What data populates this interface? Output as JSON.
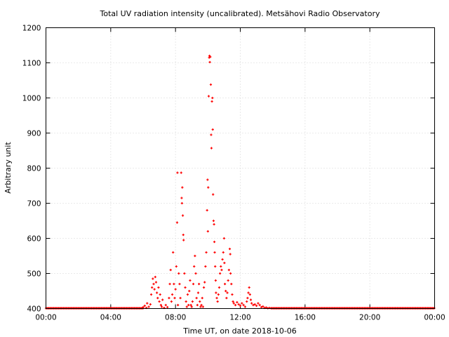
{
  "chart_data": {
    "type": "scatter",
    "title": "Total UV radiation intensity (uncalibrated). Metsähovi Radio Observatory",
    "xlabel": "Time UT, on date 2018-10-06",
    "ylabel": "Arbitrary unit",
    "xlim": [
      0,
      24
    ],
    "ylim": [
      400,
      1200
    ],
    "x_ticks": [
      0,
      4,
      8,
      12,
      16,
      20,
      24
    ],
    "x_tick_labels": [
      "00:00",
      "04:00",
      "08:00",
      "12:00",
      "16:00",
      "20:00",
      "00:00"
    ],
    "y_ticks": [
      400,
      500,
      600,
      700,
      800,
      900,
      1000,
      1100,
      1200
    ],
    "y_tick_labels": [
      "400",
      "500",
      "600",
      "700",
      "800",
      "900",
      "1000",
      "1100",
      "1200"
    ],
    "grid": true,
    "legend": "none",
    "marker_color": "#ff0000",
    "baseline_ranges": [
      [
        0,
        6.0,
        401
      ],
      [
        13.9,
        24,
        401
      ]
    ],
    "series": [
      {
        "points": [
          [
            6.0,
            404
          ],
          [
            6.1,
            408
          ],
          [
            6.2,
            402
          ],
          [
            6.25,
            415
          ],
          [
            6.35,
            405
          ],
          [
            6.45,
            412
          ],
          [
            6.5,
            440
          ],
          [
            6.55,
            460
          ],
          [
            6.6,
            485
          ],
          [
            6.65,
            470
          ],
          [
            6.7,
            455
          ],
          [
            6.75,
            490
          ],
          [
            6.8,
            475
          ],
          [
            6.85,
            445
          ],
          [
            6.9,
            430
          ],
          [
            6.95,
            460
          ],
          [
            7.0,
            420
          ],
          [
            7.05,
            440
          ],
          [
            7.1,
            410
          ],
          [
            7.15,
            405
          ],
          [
            7.2,
            425
          ],
          [
            7.3,
            402
          ],
          [
            7.4,
            410
          ],
          [
            7.5,
            404
          ],
          [
            7.6,
            430
          ],
          [
            7.65,
            470
          ],
          [
            7.7,
            510
          ],
          [
            7.75,
            420
          ],
          [
            7.8,
            440
          ],
          [
            7.85,
            560
          ],
          [
            7.9,
            470
          ],
          [
            7.95,
            430
          ],
          [
            8.0,
            455
          ],
          [
            8.05,
            520
          ],
          [
            8.1,
            645
          ],
          [
            8.12,
            787
          ],
          [
            8.15,
            410
          ],
          [
            8.2,
            500
          ],
          [
            8.25,
            470
          ],
          [
            8.3,
            430
          ],
          [
            8.35,
            787
          ],
          [
            8.38,
            715
          ],
          [
            8.4,
            700
          ],
          [
            8.42,
            745
          ],
          [
            8.45,
            665
          ],
          [
            8.48,
            610
          ],
          [
            8.5,
            595
          ],
          [
            8.55,
            500
          ],
          [
            8.6,
            460
          ],
          [
            8.65,
            420
          ],
          [
            8.7,
            405
          ],
          [
            8.75,
            440
          ],
          [
            8.8,
            410
          ],
          [
            8.85,
            450
          ],
          [
            8.9,
            480
          ],
          [
            8.95,
            410
          ],
          [
            9.0,
            405
          ],
          [
            9.05,
            420
          ],
          [
            9.1,
            470
          ],
          [
            9.15,
            520
          ],
          [
            9.2,
            550
          ],
          [
            9.25,
            500
          ],
          [
            9.3,
            430
          ],
          [
            9.35,
            410
          ],
          [
            9.4,
            445
          ],
          [
            9.45,
            470
          ],
          [
            9.5,
            420
          ],
          [
            9.55,
            405
          ],
          [
            9.6,
            410
          ],
          [
            9.65,
            430
          ],
          [
            9.7,
            405
          ],
          [
            9.75,
            460
          ],
          [
            9.8,
            475
          ],
          [
            9.85,
            520
          ],
          [
            9.9,
            560
          ],
          [
            9.95,
            680
          ],
          [
            9.98,
            767
          ],
          [
            10.0,
            620
          ],
          [
            10.02,
            745
          ],
          [
            10.05,
            1005
          ],
          [
            10.08,
            1115
          ],
          [
            10.1,
            1120
          ],
          [
            10.12,
            1102
          ],
          [
            10.15,
            1117
          ],
          [
            10.18,
            1038
          ],
          [
            10.2,
            895
          ],
          [
            10.22,
            857
          ],
          [
            10.25,
            990
          ],
          [
            10.28,
            1000
          ],
          [
            10.3,
            910
          ],
          [
            10.32,
            725
          ],
          [
            10.35,
            650
          ],
          [
            10.38,
            640
          ],
          [
            10.4,
            590
          ],
          [
            10.42,
            560
          ],
          [
            10.45,
            520
          ],
          [
            10.48,
            480
          ],
          [
            10.5,
            445
          ],
          [
            10.55,
            430
          ],
          [
            10.6,
            420
          ],
          [
            10.65,
            440
          ],
          [
            10.7,
            460
          ],
          [
            10.75,
            500
          ],
          [
            10.8,
            520
          ],
          [
            10.85,
            510
          ],
          [
            10.9,
            540
          ],
          [
            10.95,
            560
          ],
          [
            11.0,
            600
          ],
          [
            11.02,
            530
          ],
          [
            11.05,
            470
          ],
          [
            11.1,
            450
          ],
          [
            11.15,
            430
          ],
          [
            11.2,
            445
          ],
          [
            11.25,
            480
          ],
          [
            11.3,
            510
          ],
          [
            11.35,
            570
          ],
          [
            11.38,
            555
          ],
          [
            11.4,
            500
          ],
          [
            11.45,
            470
          ],
          [
            11.5,
            440
          ],
          [
            11.55,
            420
          ],
          [
            11.6,
            415
          ],
          [
            11.7,
            410
          ],
          [
            11.8,
            418
          ],
          [
            11.9,
            412
          ],
          [
            12.0,
            408
          ],
          [
            12.1,
            415
          ],
          [
            12.2,
            410
          ],
          [
            12.3,
            405
          ],
          [
            12.4,
            420
          ],
          [
            12.45,
            430
          ],
          [
            12.5,
            445
          ],
          [
            12.55,
            460
          ],
          [
            12.6,
            440
          ],
          [
            12.65,
            425
          ],
          [
            12.7,
            415
          ],
          [
            12.8,
            410
          ],
          [
            12.9,
            412
          ],
          [
            13.0,
            408
          ],
          [
            13.1,
            415
          ],
          [
            13.2,
            410
          ],
          [
            13.3,
            404
          ],
          [
            13.4,
            406
          ],
          [
            13.5,
            402
          ],
          [
            13.6,
            403
          ],
          [
            13.7,
            401
          ],
          [
            13.8,
            402
          ]
        ]
      }
    ]
  }
}
